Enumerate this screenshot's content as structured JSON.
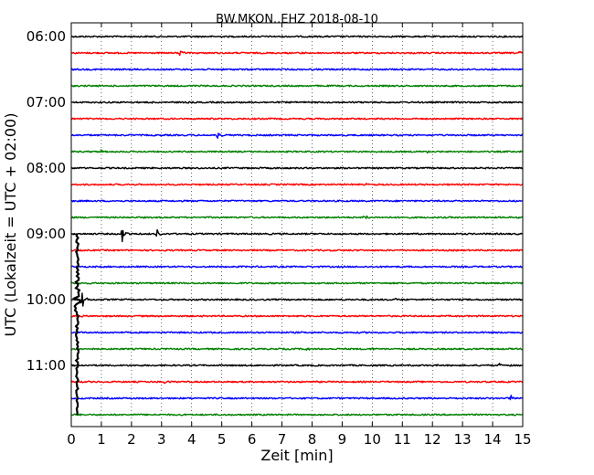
{
  "chart_data": {
    "type": "line",
    "title": "BW.MKON..EHZ 2018-08-10",
    "xlabel": "Zeit  [min]",
    "ylabel": "UTC (Lokalzeit = UTC + 02:00)",
    "xlim": [
      0,
      15
    ],
    "x_ticks": [
      "0",
      "1",
      "2",
      "3",
      "4",
      "5",
      "6",
      "7",
      "8",
      "9",
      "10",
      "11",
      "12",
      "13",
      "14",
      "15"
    ],
    "y_ticks": [
      "06:00",
      "07:00",
      "08:00",
      "09:00",
      "10:00",
      "11:00"
    ],
    "trace_colors": [
      "#000000",
      "#ff0000",
      "#0000ff",
      "#008000"
    ],
    "vertical_grid": true,
    "traces": [
      {
        "start": "06:00",
        "color": "#000000",
        "events": []
      },
      {
        "start": "06:15",
        "color": "#ff0000",
        "events": [
          {
            "t": 3.6,
            "amp": 3
          },
          {
            "t": 7.6,
            "amp": 3
          },
          {
            "t": 14.9,
            "amp": 2
          }
        ]
      },
      {
        "start": "06:30",
        "color": "#0000ff",
        "events": []
      },
      {
        "start": "06:45",
        "color": "#008000",
        "events": []
      },
      {
        "start": "07:00",
        "color": "#000000",
        "events": [
          {
            "t": 2.7,
            "amp": 2
          }
        ]
      },
      {
        "start": "07:15",
        "color": "#ff0000",
        "events": []
      },
      {
        "start": "07:30",
        "color": "#0000ff",
        "events": [
          {
            "t": 4.85,
            "amp": 5
          }
        ]
      },
      {
        "start": "07:45",
        "color": "#008000",
        "events": [
          {
            "t": 1.0,
            "amp": 2
          },
          {
            "t": 11.8,
            "amp": 2
          }
        ]
      },
      {
        "start": "08:00",
        "color": "#000000",
        "events": []
      },
      {
        "start": "08:15",
        "color": "#ff0000",
        "events": [
          {
            "t": 9.7,
            "amp": 2
          }
        ]
      },
      {
        "start": "08:30",
        "color": "#0000ff",
        "events": []
      },
      {
        "start": "08:45",
        "color": "#008000",
        "events": [
          {
            "t": 9.7,
            "amp": 8
          }
        ]
      },
      {
        "start": "09:00",
        "color": "#000000",
        "events": [
          {
            "t": 1.7,
            "amp": 13
          },
          {
            "t": 2.85,
            "amp": 5
          }
        ]
      },
      {
        "start": "09:15",
        "color": "#ff0000",
        "events": []
      },
      {
        "start": "09:30",
        "color": "#0000ff",
        "events": []
      },
      {
        "start": "09:45",
        "color": "#008000",
        "events": []
      },
      {
        "start": "10:00",
        "color": "#000000",
        "events": [
          {
            "t": 0.35,
            "amp": 12
          },
          {
            "t": 10.7,
            "amp": 2
          }
        ]
      },
      {
        "start": "10:15",
        "color": "#ff0000",
        "events": []
      },
      {
        "start": "10:30",
        "color": "#0000ff",
        "events": []
      },
      {
        "start": "10:45",
        "color": "#008000",
        "events": [
          {
            "t": 7.8,
            "amp": 2
          },
          {
            "t": 10.0,
            "amp": 2
          }
        ]
      },
      {
        "start": "11:00",
        "color": "#000000",
        "events": [
          {
            "t": 14.2,
            "amp": 2
          }
        ]
      },
      {
        "start": "11:15",
        "color": "#ff0000",
        "events": [
          {
            "t": 3.1,
            "amp": 2
          }
        ]
      },
      {
        "start": "11:30",
        "color": "#0000ff",
        "events": [
          {
            "t": 14.6,
            "amp": 5
          }
        ]
      },
      {
        "start": "11:45",
        "color": "#008000",
        "events": []
      }
    ],
    "large_event": {
      "t": 0.2,
      "from": "09:00",
      "to": "11:45",
      "color": "#000000"
    }
  }
}
